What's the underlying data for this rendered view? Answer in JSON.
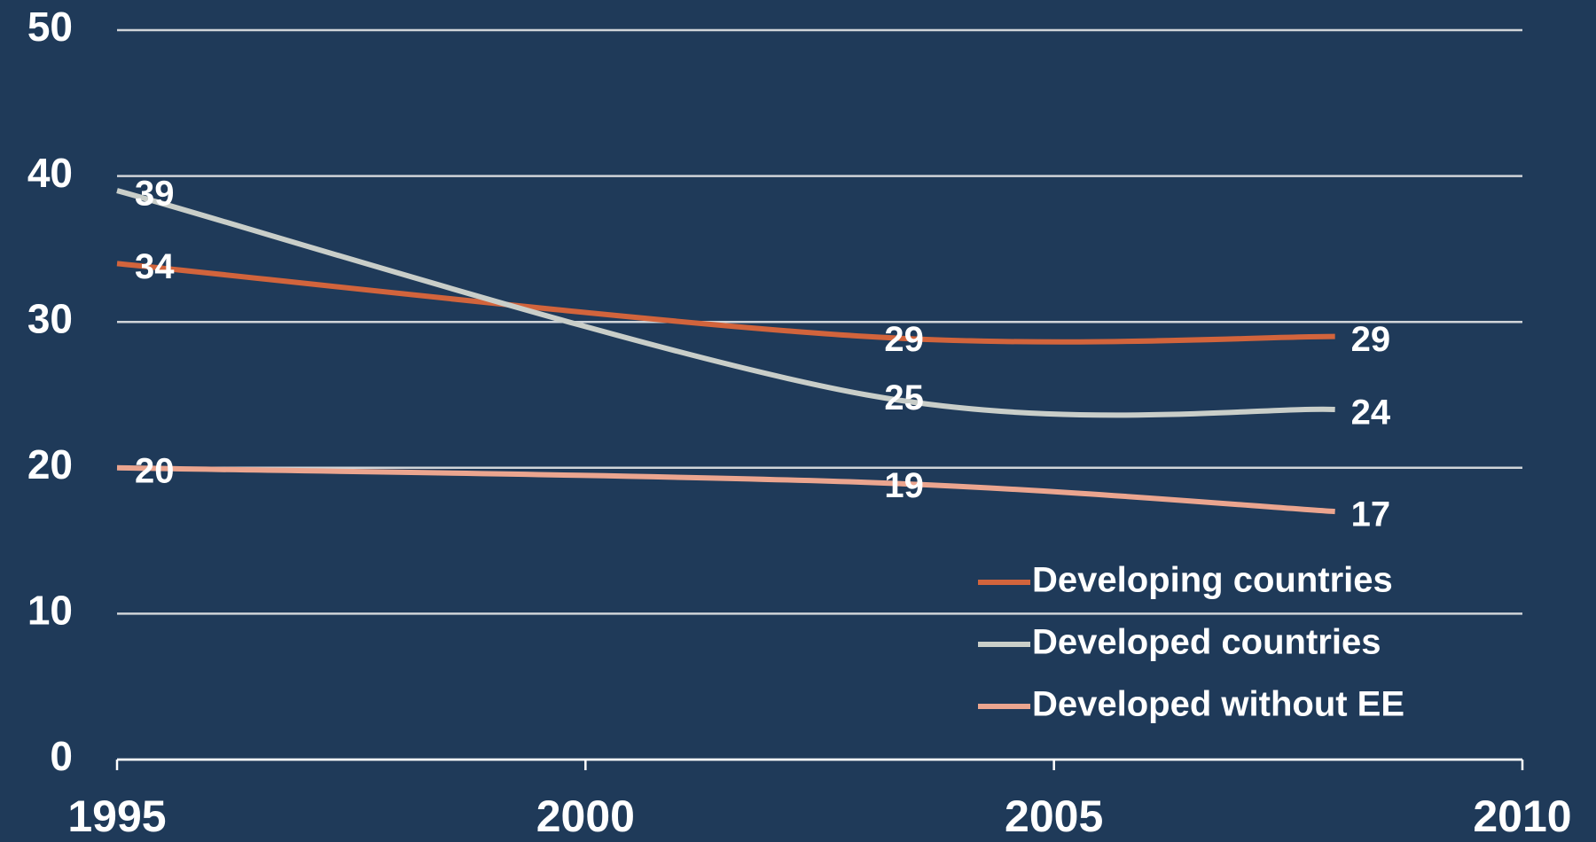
{
  "chart_data": {
    "type": "line",
    "x": [
      1995,
      2003,
      2008
    ],
    "series": [
      {
        "name": "Developing countries",
        "color": "#d2643c",
        "values": [
          34,
          29,
          29
        ]
      },
      {
        "name": "Developed countries",
        "color": "#c9cec9",
        "values": [
          39,
          25,
          24
        ]
      },
      {
        "name": "Developed without EE",
        "color": "#eba58f",
        "values": [
          20,
          19,
          17
        ]
      }
    ],
    "xlim": [
      1995,
      2010
    ],
    "xticks": [
      1995,
      2000,
      2005,
      2010
    ],
    "ylim": [
      0,
      50
    ],
    "yticks": [
      0,
      10,
      20,
      30,
      40,
      50
    ],
    "grid": true,
    "legend": "lower right"
  }
}
